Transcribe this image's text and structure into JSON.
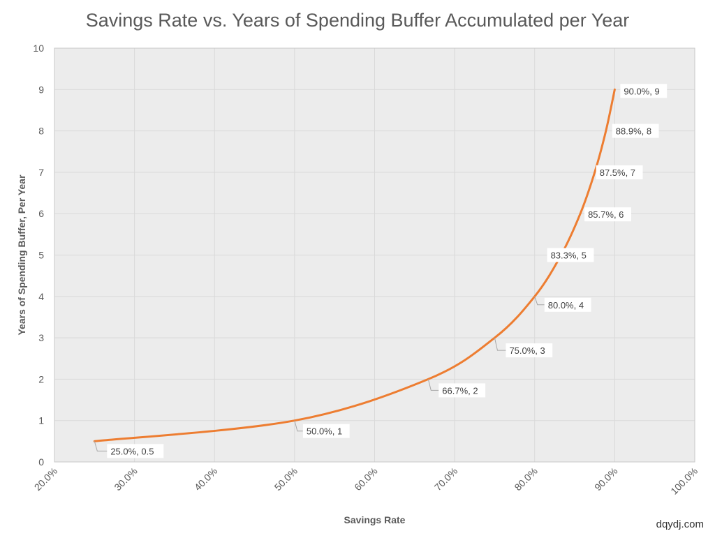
{
  "chart_data": {
    "type": "line",
    "title": "Savings Rate vs. Years of Spending Buffer Accumulated per Year",
    "xlabel": "Savings Rate",
    "ylabel": "Years of Spending Buffer, Per Year",
    "xlim": [
      0.2,
      1.0
    ],
    "ylim": [
      0,
      10
    ],
    "x_ticks": [
      "20.0%",
      "30.0%",
      "40.0%",
      "50.0%",
      "60.0%",
      "70.0%",
      "80.0%",
      "90.0%",
      "100.0%"
    ],
    "y_ticks": [
      "0",
      "1",
      "2",
      "3",
      "4",
      "5",
      "6",
      "7",
      "8",
      "9",
      "10"
    ],
    "grid": true,
    "series": [
      {
        "color": "#ed7d31",
        "points": [
          {
            "x": 0.25,
            "y": 0.5,
            "label": "25.0%, 0.5"
          },
          {
            "x": 0.5,
            "y": 1,
            "label": "50.0%, 1"
          },
          {
            "x": 0.667,
            "y": 2,
            "label": "66.7%, 2"
          },
          {
            "x": 0.75,
            "y": 3,
            "label": "75.0%, 3"
          },
          {
            "x": 0.8,
            "y": 4,
            "label": "80.0%, 4"
          },
          {
            "x": 0.833,
            "y": 5,
            "label": "83.3%, 5"
          },
          {
            "x": 0.857,
            "y": 6,
            "label": "85.7%, 6"
          },
          {
            "x": 0.875,
            "y": 7,
            "label": "87.5%, 7"
          },
          {
            "x": 0.889,
            "y": 8,
            "label": "88.9%, 8"
          },
          {
            "x": 0.9,
            "y": 9,
            "label": "90.0%, 9"
          }
        ]
      }
    ]
  },
  "credit": "dqydj.com"
}
